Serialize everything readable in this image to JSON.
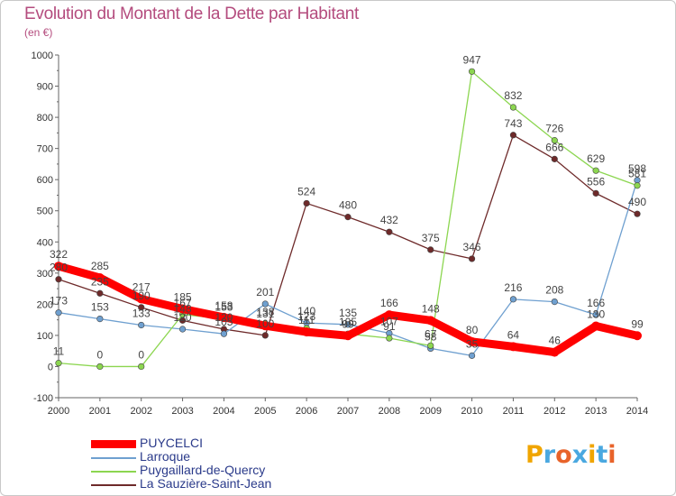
{
  "title": "Evolution du Montant de la Dette par Habitant",
  "subtitle": "(en €)",
  "colors": {
    "title": "#b44c7e",
    "axis": "#666666",
    "legend_text": "#2a3a8a",
    "PUYCELCI": "#ff0000",
    "Larroque": "#6fa0d0",
    "Puygaillard-de-Quercy": "#8cd650",
    "La Sauzière-Saint-Jean": "#6e2a2a"
  },
  "logo": {
    "letters": [
      "P",
      "r",
      "o",
      "x",
      "i",
      "t",
      "i"
    ],
    "colors": [
      "#f0a500",
      "#4aa8e0",
      "#e8632a",
      "#4aa8e0",
      "#f0a500",
      "#4aa8e0",
      "#e8632a"
    ]
  },
  "chart_data": {
    "type": "line",
    "title": "Evolution du Montant de la Dette par Habitant",
    "subtitle": "(en €)",
    "x": [
      2000,
      2001,
      2002,
      2003,
      2004,
      2005,
      2006,
      2007,
      2008,
      2009,
      2010,
      2011,
      2012,
      2013,
      2014
    ],
    "x_tick_labels": [
      "2000",
      "2001",
      "2002",
      "2003",
      "2004",
      "2005",
      "2006",
      "2007",
      "2008",
      "2009",
      "2010",
      "2011",
      "2012",
      "2013",
      "2014"
    ],
    "ylim": [
      -100,
      1000
    ],
    "y_ticks": [
      -100,
      0,
      100,
      200,
      300,
      400,
      500,
      600,
      700,
      800,
      900,
      1000
    ],
    "y_tick_labels": [
      "-100",
      "0",
      "100",
      "200",
      "300",
      "400",
      "500",
      "600",
      "700",
      "800",
      "900",
      "1000"
    ],
    "grid": false,
    "legend_position": "bottom-left",
    "series": [
      {
        "name": "La Sauzière-Saint-Jean",
        "color": "#6e2a2a",
        "values": [
          280,
          235,
          190,
          148,
          120,
          100,
          524,
          480,
          432,
          375,
          346,
          743,
          666,
          556,
          490
        ],
        "labels": [
          "280",
          "235",
          "190",
          "148",
          "120",
          "100",
          "524",
          "480",
          "432",
          "375",
          "346",
          "743",
          "666",
          "556",
          "490"
        ]
      },
      {
        "name": "Larroque",
        "color": "#6fa0d0",
        "values": [
          173,
          153,
          133,
          120,
          105,
          201,
          140,
          135,
          107,
          58,
          35,
          216,
          208,
          166,
          598
        ],
        "labels": [
          "173",
          "153",
          "133",
          "120",
          "105",
          "201",
          "140",
          "135",
          "107",
          "58",
          "35",
          "216",
          "208",
          "166",
          "598"
        ]
      },
      {
        "name": "Puygaillard-de-Quercy",
        "color": "#8cd650",
        "values": [
          11,
          0,
          0,
          167,
          153,
          138,
          123,
          105,
          91,
          67,
          947,
          832,
          726,
          629,
          581
        ],
        "labels": [
          "11",
          "0",
          "0",
          "167",
          "153",
          "138",
          "123",
          "105",
          "91",
          "67",
          "947",
          "832",
          "726",
          "629",
          "581"
        ]
      },
      {
        "name": "PUYCELCI",
        "color": "#ff0000",
        "values": [
          322,
          285,
          217,
          185,
          158,
          131,
          111,
          99,
          166,
          148,
          80,
          64,
          46,
          130,
          99
        ],
        "labels": [
          "322",
          "285",
          "217",
          "185",
          "158",
          "131",
          "111",
          "99",
          "166",
          "148",
          "80",
          "64",
          "46",
          "130",
          "99"
        ]
      }
    ]
  },
  "legend": {
    "items": [
      {
        "label": "PUYCELCI",
        "color": "#ff0000"
      },
      {
        "label": "Larroque",
        "color": "#6fa0d0"
      },
      {
        "label": "Puygaillard-de-Quercy",
        "color": "#8cd650"
      },
      {
        "label": "La Sauzière-Saint-Jean",
        "color": "#6e2a2a"
      }
    ]
  }
}
